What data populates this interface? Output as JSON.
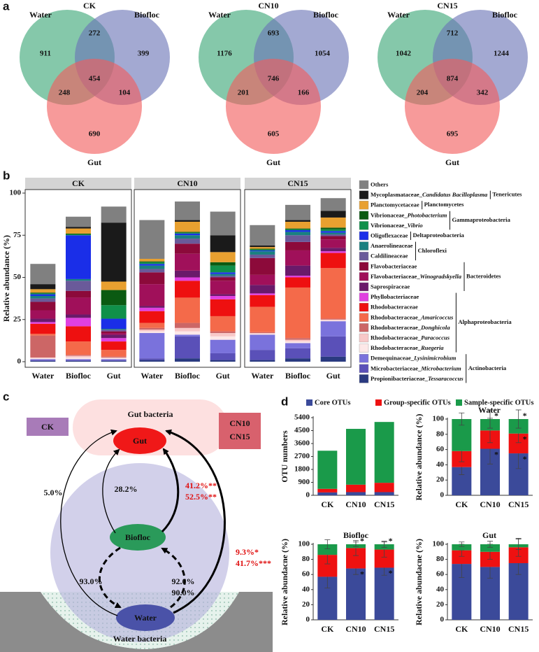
{
  "panel_labels": [
    "a",
    "b",
    "c",
    "d"
  ],
  "chart_data": [
    {
      "type": "venn",
      "sets": [
        "Water",
        "Biofloc",
        "Gut"
      ],
      "colors": [
        "#3aa776",
        "#6a74b6",
        "#f25c5c"
      ],
      "panels": [
        {
          "title": "CK",
          "values": [
            911,
            272,
            399,
            248,
            454,
            104,
            690
          ]
        },
        {
          "title": "CN10",
          "values": [
            1176,
            693,
            1054,
            201,
            746,
            166,
            605
          ]
        },
        {
          "title": "CN15",
          "values": [
            1042,
            712,
            1244,
            204,
            874,
            342,
            695
          ]
        }
      ]
    },
    {
      "type": "stacked_bar",
      "ylabel": "Relative abundance (%)",
      "ylim": [
        0,
        100
      ],
      "yticks": [
        0,
        25,
        50,
        75,
        100
      ],
      "facets": [
        "CK",
        "CN10",
        "CN15"
      ],
      "categories": [
        "Water",
        "Biofloc",
        "Gut"
      ],
      "series": [
        {
          "name": "Others",
          "color": "#808080",
          "values": [
            [
              12,
              6,
              9.5
            ],
            [
              23,
              11,
              14
            ],
            [
              12,
              9,
              7.5
            ]
          ]
        },
        {
          "name": "Mycoplasmataceae_Candidatus Bacilloplasma",
          "phylum": "Tenericutes",
          "color": "#1a1a1a",
          "values": [
            [
              3,
              1,
              35
            ],
            [
              0,
              1,
              10
            ],
            [
              1,
              1,
              4
            ]
          ]
        },
        {
          "name": "Planctomycetaceae",
          "phylum": "Planctomycetes",
          "color": "#e8a030",
          "values": [
            [
              2,
              3,
              5
            ],
            [
              1.5,
              6,
              6
            ],
            [
              1,
              4,
              6
            ]
          ]
        },
        {
          "name": "Vibrionaceae_Photobacterium",
          "phylum": "Gammaproteobacteria",
          "color": "#0b5a12",
          "values": [
            [
              0.5,
              0.5,
              9
            ],
            [
              0.5,
              0.5,
              2
            ],
            [
              0.5,
              0.5,
              1
            ]
          ]
        },
        {
          "name": "Vibrionaceae_Vibrio",
          "phylum": "Gammaproteobacteria",
          "color": "#10904a",
          "values": [
            [
              0.5,
              0.5,
              8
            ],
            [
              1,
              0.5,
              4
            ],
            [
              0.5,
              0.5,
              1
            ]
          ]
        },
        {
          "name": "Oligoflexaceae",
          "phylum": "Deltaproteobacteria",
          "color": "#1a2ee8",
          "values": [
            [
              1,
              26,
              6
            ],
            [
              1,
              1,
              1
            ],
            [
              0.5,
              1,
              1
            ]
          ]
        },
        {
          "name": "Anaerolineaceae",
          "phylum": "Chloroflexi",
          "color": "#1a8080",
          "values": [
            [
              1.5,
              1,
              0.5
            ],
            [
              2,
              2,
              1
            ],
            [
              2,
              2,
              1
            ]
          ]
        },
        {
          "name": "Caldilineaceae",
          "phylum": "Chloroflexi",
          "color": "#6a5a9a",
          "values": [
            [
              2,
              6,
              1
            ],
            [
              2,
              3,
              1
            ],
            [
              2,
              4,
              1
            ]
          ]
        },
        {
          "name": "Flavobacteriaceae",
          "phylum": "Bacteroidetes",
          "color": "#8c0a3a",
          "values": [
            [
              5,
              4,
              1
            ],
            [
              7,
              6,
              2
            ],
            [
              10,
              5,
              2
            ]
          ]
        },
        {
          "name": "Flavobacteriaceae_Winogradskyella",
          "phylum": "Bacteroidetes",
          "color": "#a0105a",
          "values": [
            [
              5,
              10,
              1
            ],
            [
              13,
              10,
              8
            ],
            [
              6,
              9,
              5
            ]
          ]
        },
        {
          "name": "Saprospiraceae",
          "phylum": "Bacteroidetes",
          "color": "#6a1a6a",
          "values": [
            [
              2,
              2,
              2
            ],
            [
              1,
              4,
              1
            ],
            [
              5,
              6,
              2
            ]
          ]
        },
        {
          "name": "Phyllobacteriaceae",
          "phylum": "Alphaproteobacteria",
          "color": "#e040e0",
          "values": [
            [
              1,
              5,
              2
            ],
            [
              2,
              2,
              2
            ],
            [
              1,
              1,
              1
            ]
          ]
        },
        {
          "name": "Rhodobacteraceae",
          "phylum": "Alphaproteobacteria",
          "color": "#ee1010",
          "values": [
            [
              6,
              9,
              5
            ],
            [
              7,
              10,
              10
            ],
            [
              7,
              6,
              9
            ]
          ]
        },
        {
          "name": "Rhodobacteraceae_Amaricoccus",
          "phylum": "Alphaproteobacteria",
          "color": "#f46a4a",
          "values": [
            [
              1,
              8,
              4
            ],
            [
              3,
              15,
              9
            ],
            [
              15,
              30,
              30
            ]
          ]
        },
        {
          "name": "Rhodobacteraceae_Donghicola",
          "phylum": "Alphaproteobacteria",
          "color": "#cc6666",
          "values": [
            [
              13,
              0.5,
              0.5
            ],
            [
              1,
              3,
              1
            ],
            [
              0.5,
              1,
              0.5
            ]
          ]
        },
        {
          "name": "Rhodobacteraceae_Paracoccus",
          "phylum": "Alphaproteobacteria",
          "color": "#f8c8c8",
          "values": [
            [
              0.5,
              1,
              0.5
            ],
            [
              1,
              2,
              2
            ],
            [
              0.5,
              1,
              0.5
            ]
          ]
        },
        {
          "name": "Rhodobacteraceae_Ruegeria",
          "phylum": "Alphaproteobacteria",
          "color": "#fde8e8",
          "values": [
            [
              0.5,
              1,
              0.5
            ],
            [
              1,
              2,
              2
            ],
            [
              0.5,
              1,
              0.5
            ]
          ]
        },
        {
          "name": "Demequinaceae_Lysinimicrobium",
          "phylum": "Actinobacteria",
          "color": "#7a72dc",
          "values": [
            [
              0.5,
              0.5,
              0.5
            ],
            [
              15,
              1,
              8
            ],
            [
              9,
              3,
              9
            ]
          ]
        },
        {
          "name": "Microbacteriaceae_Microbacterium",
          "phylum": "Actinobacteria",
          "color": "#5a50b8",
          "values": [
            [
              0.5,
              0.5,
              0.5
            ],
            [
              1,
              13,
              4
            ],
            [
              6,
              6,
              12
            ]
          ]
        },
        {
          "name": "Propionibacteriaceae_Tessaracoccus",
          "phylum": "Actinobacteria",
          "color": "#2a3a80",
          "values": [
            [
              0.5,
              0.5,
              0.5
            ],
            [
              1,
              2,
              1
            ],
            [
              1,
              2,
              3
            ]
          ]
        }
      ]
    },
    {
      "type": "stacked_bar_panels",
      "categories": [
        "CK",
        "CN10",
        "CN15"
      ],
      "series": [
        {
          "name": "Core OTUs",
          "color": "#3b4a9a"
        },
        {
          "name": "Group-specific OTUs",
          "color": "#ee1111"
        },
        {
          "name": "Sample-specific OTUs",
          "color": "#1a9a4a"
        }
      ],
      "panels": [
        {
          "ylabel": "OTU numbers",
          "ylim": [
            0,
            5400
          ],
          "yticks": [
            0,
            900,
            1800,
            2700,
            3600,
            4500,
            5400
          ],
          "values": [
            [
              200,
              220,
              220
            ],
            [
              250,
              520,
              650
            ],
            [
              2650,
              3880,
              4230
            ]
          ]
        },
        {
          "title": "Water",
          "ylabel": "Relative abundance (%)",
          "ylim": [
            0,
            100
          ],
          "yticks": [
            0,
            20,
            40,
            60,
            80,
            100
          ],
          "values": [
            [
              37,
              61,
              55
            ],
            [
              21,
              24,
              26
            ],
            [
              42,
              15,
              19
            ]
          ],
          "errors": [
            [
              10,
              20,
              20
            ],
            [
              14,
              16,
              12
            ],
            [
              8,
              12,
              12
            ]
          ],
          "significance": [
            [
              null,
              "*",
              "*"
            ],
            [
              null,
              null,
              "*"
            ],
            [
              null,
              "*",
              "*"
            ]
          ]
        },
        {
          "title": "Biofloc",
          "ylabel": "Relative abundacne (%)",
          "ylim": [
            0,
            100
          ],
          "yticks": [
            0,
            20,
            40,
            60,
            80,
            100
          ],
          "values": [
            [
              57,
              68,
              69
            ],
            [
              29,
              27,
              24
            ],
            [
              14,
              5,
              7
            ]
          ],
          "errors": [
            [
              15,
              8,
              10
            ],
            [
              12,
              10,
              10
            ],
            [
              6,
              3,
              4
            ]
          ],
          "significance": [
            [
              null,
              "*",
              "*"
            ],
            [
              null,
              null,
              null
            ],
            [
              null,
              "*",
              "*"
            ]
          ]
        },
        {
          "title": "Gut",
          "ylabel": "Relative abundacne (%)",
          "ylim": [
            0,
            100
          ],
          "yticks": [
            0,
            20,
            40,
            60,
            80,
            100
          ],
          "values": [
            [
              74,
              70,
              75
            ],
            [
              18,
              20,
              21
            ],
            [
              8,
              10,
              4
            ]
          ],
          "errors": [
            [
              18,
              15,
              15
            ],
            [
              8,
              10,
              12
            ],
            [
              3,
              4,
              7
            ]
          ]
        }
      ]
    }
  ],
  "diagram": {
    "boxes": [
      "CK",
      "CN10",
      "CN15"
    ],
    "zones": [
      "Gut bacteria",
      "Water bacteria"
    ],
    "nodes": [
      "Gut",
      "Biofloc",
      "Water"
    ],
    "edge_labels": [
      "28.2%",
      "41.2%**",
      "52.5%**",
      "5.0%",
      "9.3%*",
      "41.7%***",
      "93.0%",
      "92.0%",
      "90.0%"
    ]
  }
}
